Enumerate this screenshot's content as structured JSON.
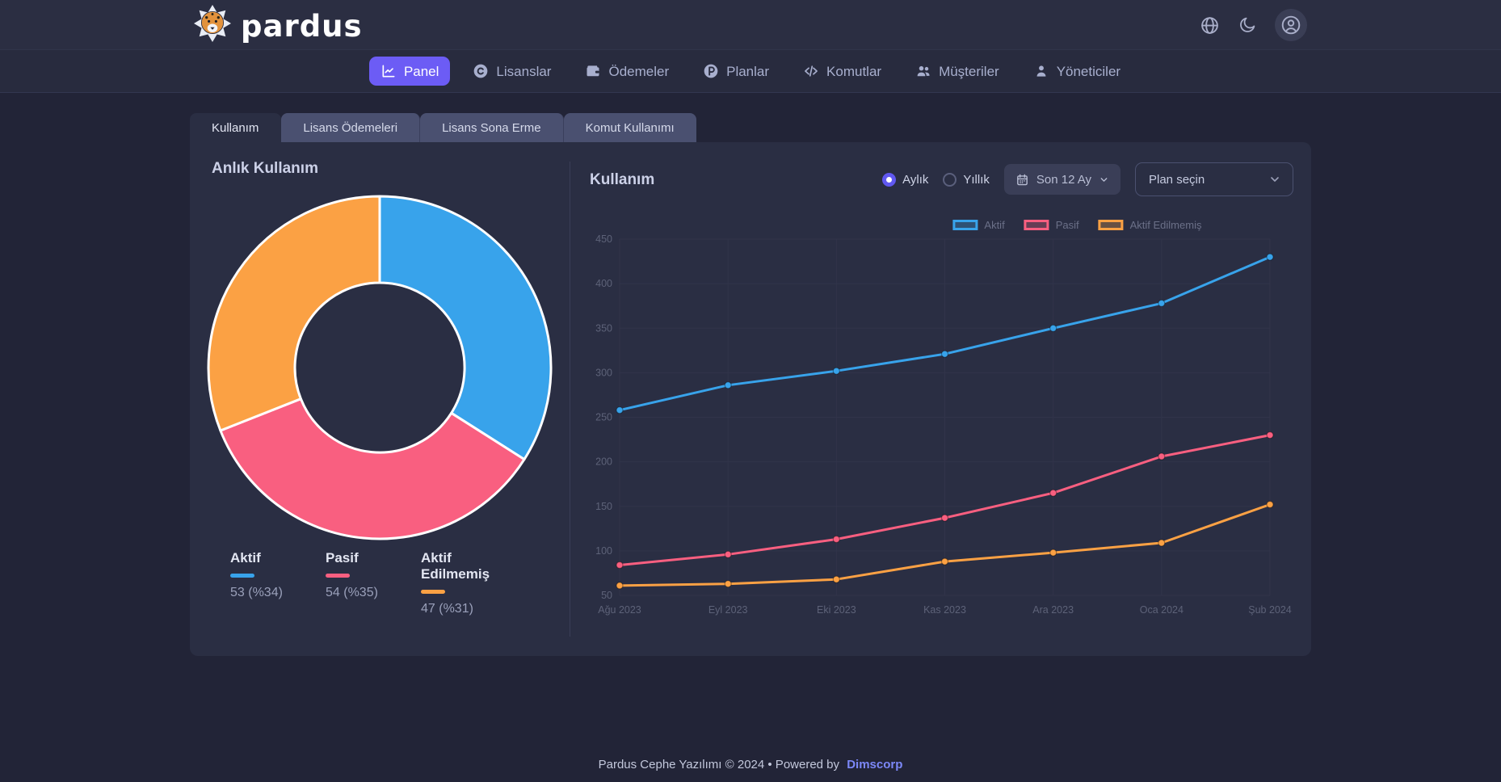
{
  "brand": {
    "wordmark": "pardus"
  },
  "header": {
    "actions": [
      {
        "name": "language-button",
        "icon": "globe-icon"
      },
      {
        "name": "theme-toggle-button",
        "icon": "moon-icon"
      },
      {
        "name": "account-button",
        "icon": "user-avatar-icon"
      }
    ]
  },
  "nav": {
    "items": [
      {
        "label": "Panel",
        "icon": "chart-line-icon",
        "active": true
      },
      {
        "label": "Lisanslar",
        "icon": "license-icon",
        "active": false
      },
      {
        "label": "Ödemeler",
        "icon": "wallet-icon",
        "active": false
      },
      {
        "label": "Planlar",
        "icon": "plan-icon",
        "active": false
      },
      {
        "label": "Komutlar",
        "icon": "code-icon",
        "active": false
      },
      {
        "label": "Müşteriler",
        "icon": "customers-icon",
        "active": false
      },
      {
        "label": "Yöneticiler",
        "icon": "admin-icon",
        "active": false
      }
    ]
  },
  "tabs": {
    "items": [
      {
        "label": "Kullanım",
        "active": true
      },
      {
        "label": "Lisans Ödemeleri",
        "active": false
      },
      {
        "label": "Lisans Sona Erme",
        "active": false
      },
      {
        "label": "Komut Kullanımı",
        "active": false
      }
    ]
  },
  "panels": {
    "donut": {
      "title": "Anlık Kullanım"
    },
    "usage": {
      "title": "Kullanım",
      "radios": [
        {
          "label": "Aylık",
          "selected": true
        },
        {
          "label": "Yıllık",
          "selected": false
        }
      ],
      "range_button": {
        "label": "Son 12 Ay",
        "icon": "calendar-icon"
      },
      "plan_select": {
        "placeholder": "Plan seçin"
      }
    }
  },
  "footer": {
    "text": "Pardus Cephe Yazılımı © 2024 • Powered by",
    "link": "Dimscorp"
  },
  "colors": {
    "accent": "#6c5cf5",
    "blue": "#38a3eb",
    "pink": "#f95f80",
    "orange": "#fba144",
    "grid": "#31344a",
    "axis_text": "#5d6278"
  },
  "chart_data": [
    {
      "type": "pie",
      "variant": "donut",
      "title": "Anlık Kullanım",
      "labels": [
        "Aktif",
        "Pasif",
        "Aktif Edilmemiş"
      ],
      "values": [
        53,
        54,
        47
      ],
      "percents": [
        34,
        35,
        31
      ],
      "colors": [
        "#38a3eb",
        "#f95f80",
        "#fba144"
      ],
      "legend_position": "bottom"
    },
    {
      "type": "line",
      "title": "Kullanım",
      "x": [
        "Ağu 2023",
        "Eyl 2023",
        "Eki 2023",
        "Kas 2023",
        "Ara 2023",
        "Oca 2024",
        "Şub 2024"
      ],
      "series": [
        {
          "name": "Aktif",
          "color": "#38a3eb",
          "values": [
            258,
            286,
            302,
            321,
            350,
            378,
            430
          ]
        },
        {
          "name": "Pasif",
          "color": "#f95f80",
          "values": [
            84,
            96,
            113,
            137,
            165,
            206,
            230
          ]
        },
        {
          "name": "Aktif Edilmemiş",
          "color": "#fba144",
          "values": [
            61,
            63,
            68,
            88,
            98,
            109,
            152
          ]
        }
      ],
      "ylim": [
        50,
        450
      ],
      "ytick_step": 50,
      "grid": true,
      "legend_position": "top"
    }
  ]
}
